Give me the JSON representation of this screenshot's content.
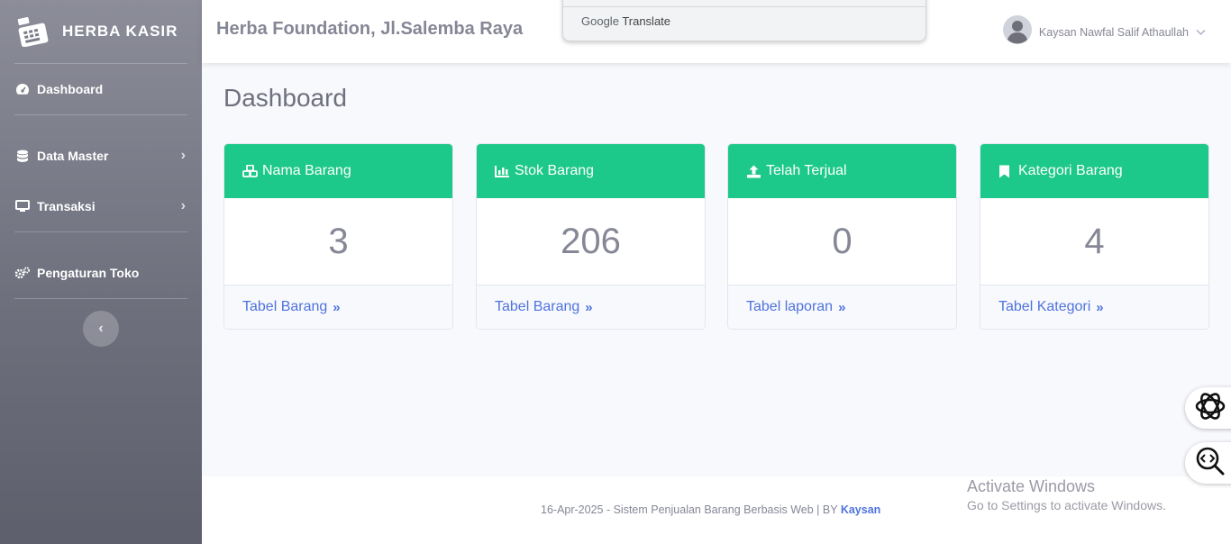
{
  "brand": {
    "name": "HERBA KASIR"
  },
  "sidebar": {
    "items": [
      {
        "label": "Dashboard",
        "icon": "tachometer-icon"
      },
      {
        "label": "Data Master",
        "icon": "database-icon"
      },
      {
        "label": "Transaksi",
        "icon": "desktop-icon"
      },
      {
        "label": "Pengaturan Toko",
        "icon": "cogs-icon"
      }
    ]
  },
  "topbar": {
    "store_title": "Herba Foundation, Jl.Salemba Raya",
    "translate_label_google": "Google",
    "translate_label": "Translate",
    "user_name": "Kaysan Nawfal Salif Athaullah"
  },
  "main": {
    "title": "Dashboard",
    "cards": [
      {
        "title": "Nama Barang",
        "value": "3",
        "link": "Tabel Barang",
        "icon": "cubes-icon"
      },
      {
        "title": "Stok Barang",
        "value": "206",
        "link": "Tabel Barang",
        "icon": "chart-bar-icon"
      },
      {
        "title": "Telah Terjual",
        "value": "0",
        "link": "Tabel laporan",
        "icon": "upload-icon"
      },
      {
        "title": "Kategori Barang",
        "value": "4",
        "link": "Tabel Kategori",
        "icon": "bookmark-icon"
      }
    ]
  },
  "footer": {
    "text": "16-Apr-2025 - Sistem Penjualan Barang Berbasis Web | BY ",
    "author": "Kaysan"
  },
  "watermark": {
    "line1": "Activate Windows",
    "line2": "Go to Settings to activate Windows."
  },
  "colors": {
    "accent": "#1cc88a",
    "link": "#4e73df",
    "text": "#858796"
  }
}
